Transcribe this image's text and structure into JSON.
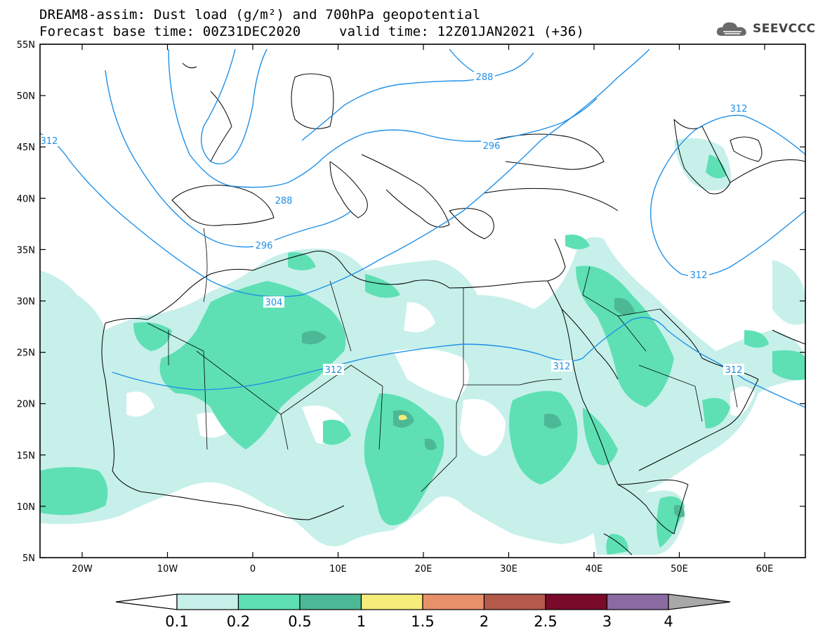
{
  "header": {
    "title_line1": "DREAM8-assim: Dust load (g/m²) and 700hPa geopotential",
    "title_line2a": "Forecast base time: 00Z31DEC2020",
    "title_line2b": "valid time: 12Z01JAN2021 (+36)",
    "logo_text": "SEEVCCC"
  },
  "map": {
    "lat_ticks": [
      "55N",
      "50N",
      "45N",
      "40N",
      "35N",
      "30N",
      "25N",
      "20N",
      "15N",
      "10N",
      "5N"
    ],
    "lon_ticks": [
      "20W",
      "10W",
      "0",
      "10E",
      "20E",
      "30E",
      "40E",
      "50E",
      "60E"
    ],
    "contour_labels": [
      "312",
      "288",
      "296",
      "288",
      "296",
      "304",
      "312",
      "312",
      "312",
      "312",
      "312"
    ],
    "colors": {
      "contour": "#1e90e8",
      "land_border": "#000000"
    }
  },
  "legend": {
    "labels": [
      "0.1",
      "0.2",
      "0.5",
      "1",
      "1.5",
      "2",
      "2.5",
      "3",
      "4"
    ],
    "colors": [
      "#c7f0ea",
      "#5ee0b4",
      "#4db895",
      "#f5ec7a",
      "#e8906a",
      "#b35a4a",
      "#7a0a2a",
      "#8a6aa0",
      "#a8a8a8"
    ],
    "under_color": "#ffffff"
  }
}
